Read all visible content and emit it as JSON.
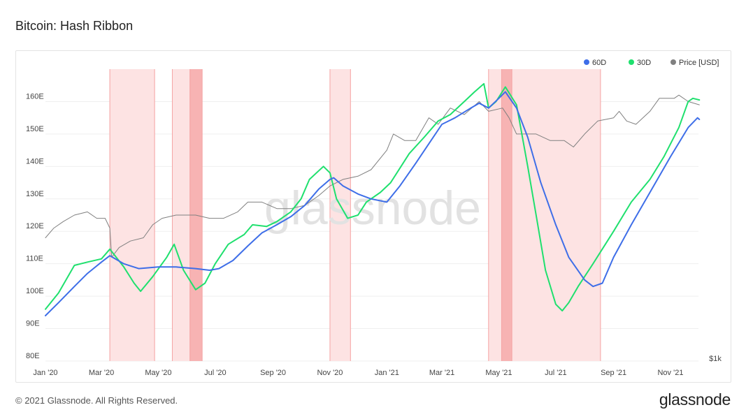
{
  "title": "Bitcoin: Hash Ribbon",
  "footer": {
    "copyright": "© 2021 Glassnode. All Rights Reserved.",
    "logo": "glassnode"
  },
  "watermark": "glassnode",
  "colors": {
    "sixty": "#3e6ee8",
    "thirty": "#1fe06e",
    "price": "#808080",
    "band_light": "#fde3e3",
    "band_dark": "#f7b3b3",
    "band_edge": "#f5a3a3",
    "grid": "#efefef"
  },
  "chart_data": {
    "type": "line",
    "title": "Bitcoin: Hash Ribbon",
    "x_ticks": [
      "Jan '20",
      "Mar '20",
      "May '20",
      "Jul '20",
      "Sep '20",
      "Nov '20",
      "Jan '21",
      "Mar '21",
      "May '21",
      "Jul '21",
      "Sep '21",
      "Nov '21"
    ],
    "x_range": [
      "2020-01-01",
      "2021-12-01"
    ],
    "left_axis": {
      "ticks": [
        "80E",
        "90E",
        "100E",
        "110E",
        "120E",
        "130E",
        "140E",
        "150E",
        "160E"
      ],
      "range": [
        80,
        170
      ]
    },
    "right_axis": {
      "label": "$1k",
      "scale": "log"
    },
    "legend": [
      "60D",
      "30D",
      "Price [USD]"
    ],
    "legend_position": "top-right",
    "grid": true,
    "capitulation_bands": [
      {
        "start": "2020-03-10",
        "end": "2020-04-27",
        "level": "light"
      },
      {
        "start": "2020-05-16",
        "end": "2020-06-04",
        "level": "light"
      },
      {
        "start": "2020-06-04",
        "end": "2020-06-17",
        "level": "dark"
      },
      {
        "start": "2020-11-01",
        "end": "2020-11-23",
        "level": "light"
      },
      {
        "start": "2021-04-20",
        "end": "2021-05-04",
        "level": "light"
      },
      {
        "start": "2021-05-04",
        "end": "2021-05-15",
        "level": "dark"
      },
      {
        "start": "2021-05-15",
        "end": "2021-08-18",
        "level": "light"
      }
    ],
    "series": [
      {
        "name": "60D",
        "points": [
          [
            "2020-01-01",
            94
          ],
          [
            "2020-01-15",
            98
          ],
          [
            "2020-02-01",
            103
          ],
          [
            "2020-02-15",
            107
          ],
          [
            "2020-03-01",
            110.5
          ],
          [
            "2020-03-10",
            112.5
          ],
          [
            "2020-03-25",
            110
          ],
          [
            "2020-04-10",
            108.5
          ],
          [
            "2020-05-01",
            109
          ],
          [
            "2020-05-20",
            109
          ],
          [
            "2020-06-10",
            108.5
          ],
          [
            "2020-06-25",
            108
          ],
          [
            "2020-07-05",
            108.5
          ],
          [
            "2020-07-20",
            111
          ],
          [
            "2020-08-05",
            115.5
          ],
          [
            "2020-08-20",
            119.5
          ],
          [
            "2020-09-05",
            122
          ],
          [
            "2020-09-20",
            124.5
          ],
          [
            "2020-10-05",
            128
          ],
          [
            "2020-10-20",
            133
          ],
          [
            "2020-11-01",
            136
          ],
          [
            "2020-11-05",
            136.5
          ],
          [
            "2020-11-15",
            134
          ],
          [
            "2020-12-01",
            131.5
          ],
          [
            "2020-12-15",
            130
          ],
          [
            "2021-01-01",
            129
          ],
          [
            "2021-01-15",
            134
          ],
          [
            "2021-02-01",
            141
          ],
          [
            "2021-02-15",
            147
          ],
          [
            "2021-03-01",
            153
          ],
          [
            "2021-03-15",
            155
          ],
          [
            "2021-04-01",
            158
          ],
          [
            "2021-04-10",
            159.5
          ],
          [
            "2021-04-20",
            158
          ],
          [
            "2021-05-01",
            161
          ],
          [
            "2021-05-08",
            163
          ],
          [
            "2021-05-20",
            158
          ],
          [
            "2021-06-01",
            149
          ],
          [
            "2021-06-15",
            135
          ],
          [
            "2021-07-01",
            122
          ],
          [
            "2021-07-15",
            112
          ],
          [
            "2021-08-01",
            105
          ],
          [
            "2021-08-10",
            103
          ],
          [
            "2021-08-20",
            104
          ],
          [
            "2021-09-01",
            112
          ],
          [
            "2021-09-20",
            122
          ],
          [
            "2021-10-10",
            132
          ],
          [
            "2021-11-01",
            143
          ],
          [
            "2021-11-20",
            152
          ],
          [
            "2021-11-30",
            155
          ],
          [
            "2021-12-02",
            154.5
          ]
        ]
      },
      {
        "name": "30D",
        "points": [
          [
            "2020-01-01",
            96
          ],
          [
            "2020-01-15",
            101
          ],
          [
            "2020-02-01",
            109.5
          ],
          [
            "2020-02-15",
            110.5
          ],
          [
            "2020-03-01",
            111.5
          ],
          [
            "2020-03-10",
            114.5
          ],
          [
            "2020-03-25",
            109
          ],
          [
            "2020-04-05",
            104
          ],
          [
            "2020-04-12",
            101.5
          ],
          [
            "2020-04-25",
            106
          ],
          [
            "2020-05-10",
            112
          ],
          [
            "2020-05-18",
            116
          ],
          [
            "2020-05-28",
            108
          ],
          [
            "2020-06-10",
            102
          ],
          [
            "2020-06-20",
            104
          ],
          [
            "2020-07-01",
            110
          ],
          [
            "2020-07-15",
            116
          ],
          [
            "2020-08-01",
            119
          ],
          [
            "2020-08-10",
            122
          ],
          [
            "2020-08-25",
            121.5
          ],
          [
            "2020-09-05",
            123
          ],
          [
            "2020-09-20",
            126
          ],
          [
            "2020-10-01",
            130
          ],
          [
            "2020-10-10",
            136
          ],
          [
            "2020-10-25",
            140
          ],
          [
            "2020-11-01",
            138
          ],
          [
            "2020-11-08",
            130
          ],
          [
            "2020-11-20",
            124
          ],
          [
            "2020-12-01",
            125
          ],
          [
            "2020-12-10",
            129
          ],
          [
            "2020-12-25",
            132
          ],
          [
            "2021-01-05",
            135
          ],
          [
            "2021-01-25",
            144
          ],
          [
            "2021-02-10",
            149
          ],
          [
            "2021-02-25",
            154
          ],
          [
            "2021-03-10",
            156
          ],
          [
            "2021-03-25",
            160
          ],
          [
            "2021-04-05",
            163
          ],
          [
            "2021-04-15",
            165.5
          ],
          [
            "2021-04-20",
            158
          ],
          [
            "2021-04-28",
            160
          ],
          [
            "2021-05-08",
            164.5
          ],
          [
            "2021-05-20",
            159
          ],
          [
            "2021-06-01",
            140
          ],
          [
            "2021-06-10",
            125
          ],
          [
            "2021-06-20",
            108
          ],
          [
            "2021-07-01",
            97.5
          ],
          [
            "2021-07-08",
            95.5
          ],
          [
            "2021-07-15",
            98
          ],
          [
            "2021-07-25",
            103
          ],
          [
            "2021-08-10",
            110
          ],
          [
            "2021-09-01",
            120
          ],
          [
            "2021-09-20",
            129
          ],
          [
            "2021-10-10",
            136
          ],
          [
            "2021-10-25",
            143
          ],
          [
            "2021-11-10",
            152
          ],
          [
            "2021-11-20",
            160
          ],
          [
            "2021-11-25",
            161
          ],
          [
            "2021-12-02",
            160.5
          ]
        ]
      },
      {
        "name": "Price [USD]",
        "points": [
          [
            "2020-01-01",
            118
          ],
          [
            "2020-01-10",
            121
          ],
          [
            "2020-01-20",
            123
          ],
          [
            "2020-02-01",
            125
          ],
          [
            "2020-02-15",
            126
          ],
          [
            "2020-02-25",
            124
          ],
          [
            "2020-03-05",
            124
          ],
          [
            "2020-03-10",
            121
          ],
          [
            "2020-03-12",
            112
          ],
          [
            "2020-03-20",
            115
          ],
          [
            "2020-04-01",
            117
          ],
          [
            "2020-04-15",
            118
          ],
          [
            "2020-04-25",
            122
          ],
          [
            "2020-05-05",
            124
          ],
          [
            "2020-05-20",
            125
          ],
          [
            "2020-06-10",
            125
          ],
          [
            "2020-06-25",
            124
          ],
          [
            "2020-07-10",
            124
          ],
          [
            "2020-07-25",
            126
          ],
          [
            "2020-08-05",
            129
          ],
          [
            "2020-08-20",
            129
          ],
          [
            "2020-09-05",
            127
          ],
          [
            "2020-09-20",
            127
          ],
          [
            "2020-10-05",
            128
          ],
          [
            "2020-10-20",
            131
          ],
          [
            "2020-11-01",
            134
          ],
          [
            "2020-11-15",
            136
          ],
          [
            "2020-12-01",
            137
          ],
          [
            "2020-12-15",
            139
          ],
          [
            "2021-01-01",
            145
          ],
          [
            "2021-01-08",
            150
          ],
          [
            "2021-01-20",
            148
          ],
          [
            "2021-02-01",
            148
          ],
          [
            "2021-02-15",
            155
          ],
          [
            "2021-02-25",
            153
          ],
          [
            "2021-03-10",
            158
          ],
          [
            "2021-03-25",
            156
          ],
          [
            "2021-04-10",
            160
          ],
          [
            "2021-04-20",
            157
          ],
          [
            "2021-05-05",
            158
          ],
          [
            "2021-05-12",
            155
          ],
          [
            "2021-05-20",
            150
          ],
          [
            "2021-06-10",
            150
          ],
          [
            "2021-06-25",
            148
          ],
          [
            "2021-07-10",
            148
          ],
          [
            "2021-07-20",
            146
          ],
          [
            "2021-08-01",
            150
          ],
          [
            "2021-08-15",
            154
          ],
          [
            "2021-09-01",
            155
          ],
          [
            "2021-09-07",
            157
          ],
          [
            "2021-09-15",
            154
          ],
          [
            "2021-09-25",
            153
          ],
          [
            "2021-10-10",
            157
          ],
          [
            "2021-10-20",
            161
          ],
          [
            "2021-11-05",
            161
          ],
          [
            "2021-11-10",
            162
          ],
          [
            "2021-11-20",
            160
          ],
          [
            "2021-12-02",
            159
          ]
        ]
      }
    ]
  }
}
